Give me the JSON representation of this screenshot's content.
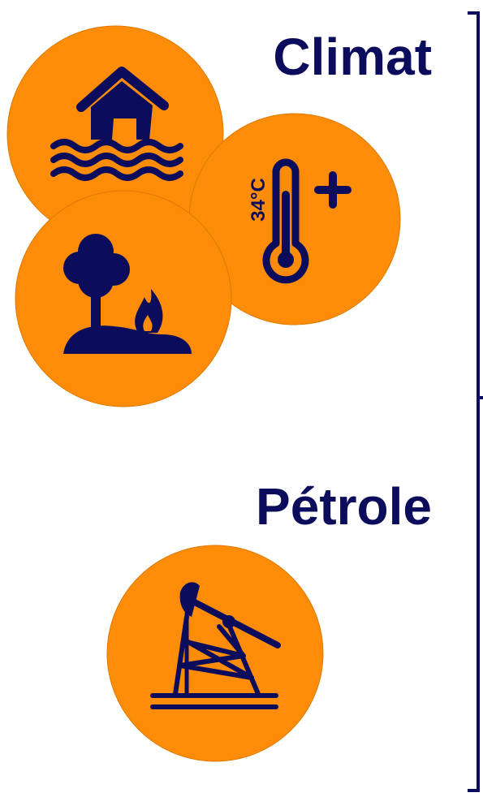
{
  "sections": [
    {
      "title": "Climat",
      "icons": [
        {
          "label": "34°C"
        }
      ]
    },
    {
      "title": "Pétrole"
    }
  ]
}
